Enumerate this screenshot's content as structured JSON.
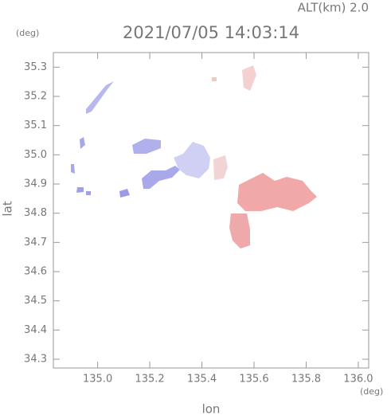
{
  "chart_data": {
    "type": "map",
    "title": "2021/07/05 14:03:14",
    "annotation": "ALT(km)  2.0",
    "x_unit": "(deg)",
    "y_unit": "(deg)",
    "xlabel": "lon",
    "ylabel": "lat",
    "xlim": [
      134.83,
      136.04
    ],
    "ylim": [
      34.27,
      35.35
    ],
    "xticks": [
      {
        "value": 135.0,
        "label": "135.0"
      },
      135.2,
      135.4,
      135.6,
      135.8,
      {
        "value": 136.0,
        "label": "136.0"
      }
    ],
    "yticks": [
      34.3,
      34.4,
      34.5,
      34.6,
      34.7,
      34.8,
      34.9,
      {
        "value": 35.0,
        "label": "35.0"
      },
      35.1,
      35.2,
      35.3
    ],
    "frame_color": "#999999"
  }
}
